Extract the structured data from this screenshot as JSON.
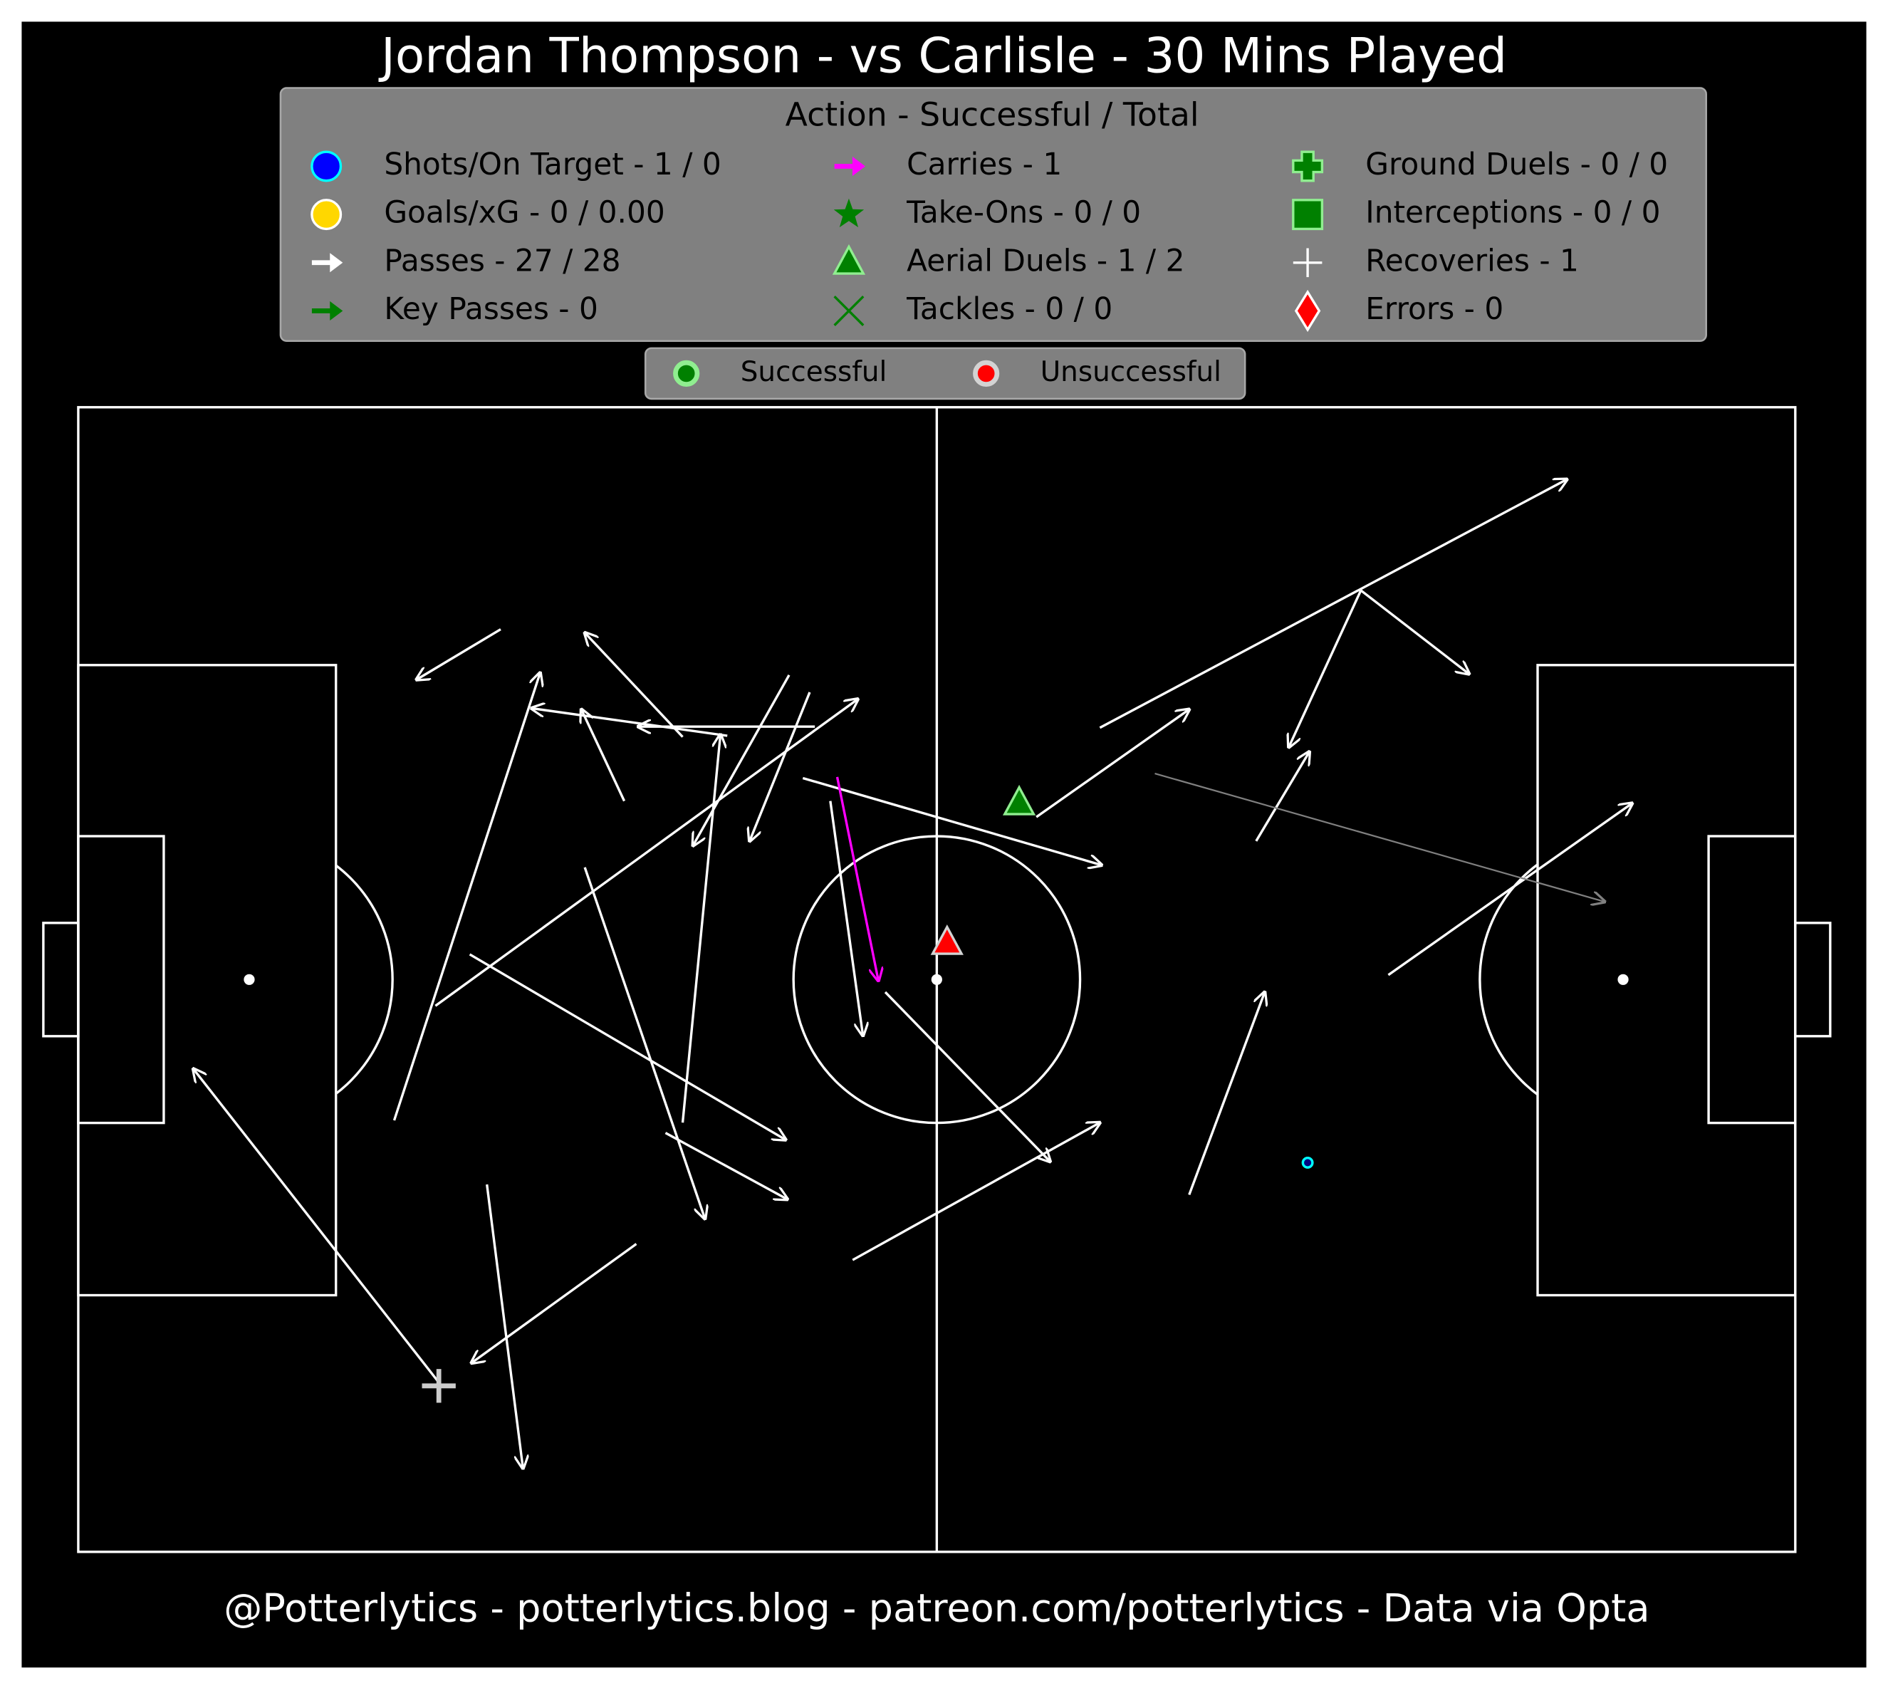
{
  "chart_data": {
    "type": "pitch",
    "title": "Jordan Thompson - vs Carlisle - 30 Mins Played",
    "legend_title": "Action - Successful / Total",
    "legend": [
      {
        "label": "Shots/On Target - 1 / 0",
        "marker": "circle",
        "color": "#0000ff",
        "edge": "#00ffff"
      },
      {
        "label": "Goals/xG - 0 / 0.00",
        "marker": "circle",
        "color": "#ffd700",
        "edge": "#ffffff"
      },
      {
        "label": "Passes - 27 / 28",
        "marker": "arrow",
        "color": "#ffffff"
      },
      {
        "label": "Key Passes - 0",
        "marker": "arrow",
        "color": "#008000"
      },
      {
        "label": "Carries - 1",
        "marker": "arrow",
        "color": "#ff00ff"
      },
      {
        "label": "Take-Ons - 0 / 0",
        "marker": "star",
        "color": "#008000"
      },
      {
        "label": "Aerial Duels - 1 / 2",
        "marker": "triangle",
        "color": "#008000",
        "edge": "#90ee90"
      },
      {
        "label": "Tackles - 0 / 0",
        "marker": "x",
        "color": "#008000"
      },
      {
        "label": "Ground Duels - 0 / 0",
        "marker": "plus",
        "color": "#008000",
        "edge": "#90ee90"
      },
      {
        "label": "Interceptions - 0 / 0",
        "marker": "square",
        "color": "#008000",
        "edge": "#90ee90"
      },
      {
        "label": "Recoveries - 1",
        "marker": "thinplus",
        "color": "#ffffff"
      },
      {
        "label": "Errors - 0",
        "marker": "diamond",
        "color": "#ff0000",
        "edge": "#ffffff"
      }
    ],
    "outcome_legend": [
      {
        "label": "Successful",
        "color": "#008000",
        "edge": "#90ee90"
      },
      {
        "label": "Unsuccessful",
        "color": "#ff0000",
        "edge": "#d3d3d3"
      }
    ],
    "footer": "@Potterlytics - potterlytics.blog - patreon.com/potterlytics - Data via Opta",
    "xlim": [
      0,
      100
    ],
    "ylim": [
      0,
      100
    ],
    "passes": {
      "successful": [
        [
          24.6,
          80.6,
          19.7,
          76.2
        ],
        [
          35.2,
          71.2,
          29.5,
          80.3
        ],
        [
          42.9,
          72.1,
          32.6,
          72.1
        ],
        [
          37.8,
          71.3,
          26.4,
          73.7
        ],
        [
          31.8,
          65.6,
          29.3,
          73.6
        ],
        [
          41.4,
          76.6,
          35.8,
          61.7
        ],
        [
          42.6,
          75.1,
          39.1,
          62.1
        ],
        [
          20.8,
          47.7,
          45.4,
          74.5
        ],
        [
          18.4,
          37.7,
          26.9,
          76.8
        ],
        [
          35.2,
          37.5,
          37.4,
          71.4
        ],
        [
          29.5,
          59.8,
          36.5,
          29.1
        ],
        [
          22.8,
          52.2,
          41.2,
          36.0
        ],
        [
          34.2,
          36.6,
          41.3,
          30.8
        ],
        [
          43.8,
          65.6,
          45.7,
          45.1
        ],
        [
          42.2,
          67.6,
          59.6,
          60.0
        ],
        [
          47.0,
          48.9,
          56.6,
          34.1
        ],
        [
          45.1,
          25.5,
          59.5,
          37.5
        ],
        [
          32.5,
          26.9,
          22.9,
          16.5
        ],
        [
          21.0,
          14.8,
          6.7,
          42.2
        ],
        [
          23.8,
          32.1,
          25.9,
          7.3
        ],
        [
          55.8,
          64.2,
          64.7,
          73.6
        ],
        [
          59.5,
          72.0,
          86.7,
          93.7
        ],
        [
          74.7,
          84.0,
          81.0,
          76.7
        ],
        [
          74.7,
          84.0,
          70.5,
          70.3
        ],
        [
          68.6,
          62.1,
          71.7,
          69.9
        ],
        [
          64.7,
          31.2,
          69.1,
          48.9
        ],
        [
          76.3,
          50.4,
          90.5,
          65.4
        ]
      ],
      "unsuccessful": [
        [
          62.7,
          68.0,
          88.9,
          56.8
        ]
      ],
      "color": "#ffffff",
      "unsuccessful_color": "#808080"
    },
    "carries": {
      "values": [
        [
          44.2,
          67.7,
          46.6,
          49.9
        ]
      ],
      "color": "#ff00ff"
    },
    "aerial_duels": {
      "successful": [
        [
          54.8,
          65.4
        ]
      ],
      "unsuccessful": [
        [
          50.6,
          53.2
        ]
      ]
    },
    "shots": {
      "values": [
        [
          71.6,
          34.0
        ]
      ],
      "color": "#000080",
      "edge": "#00ffff"
    },
    "recoveries": {
      "values": [
        [
          21.0,
          14.5
        ]
      ],
      "color": "#cccccc"
    }
  }
}
